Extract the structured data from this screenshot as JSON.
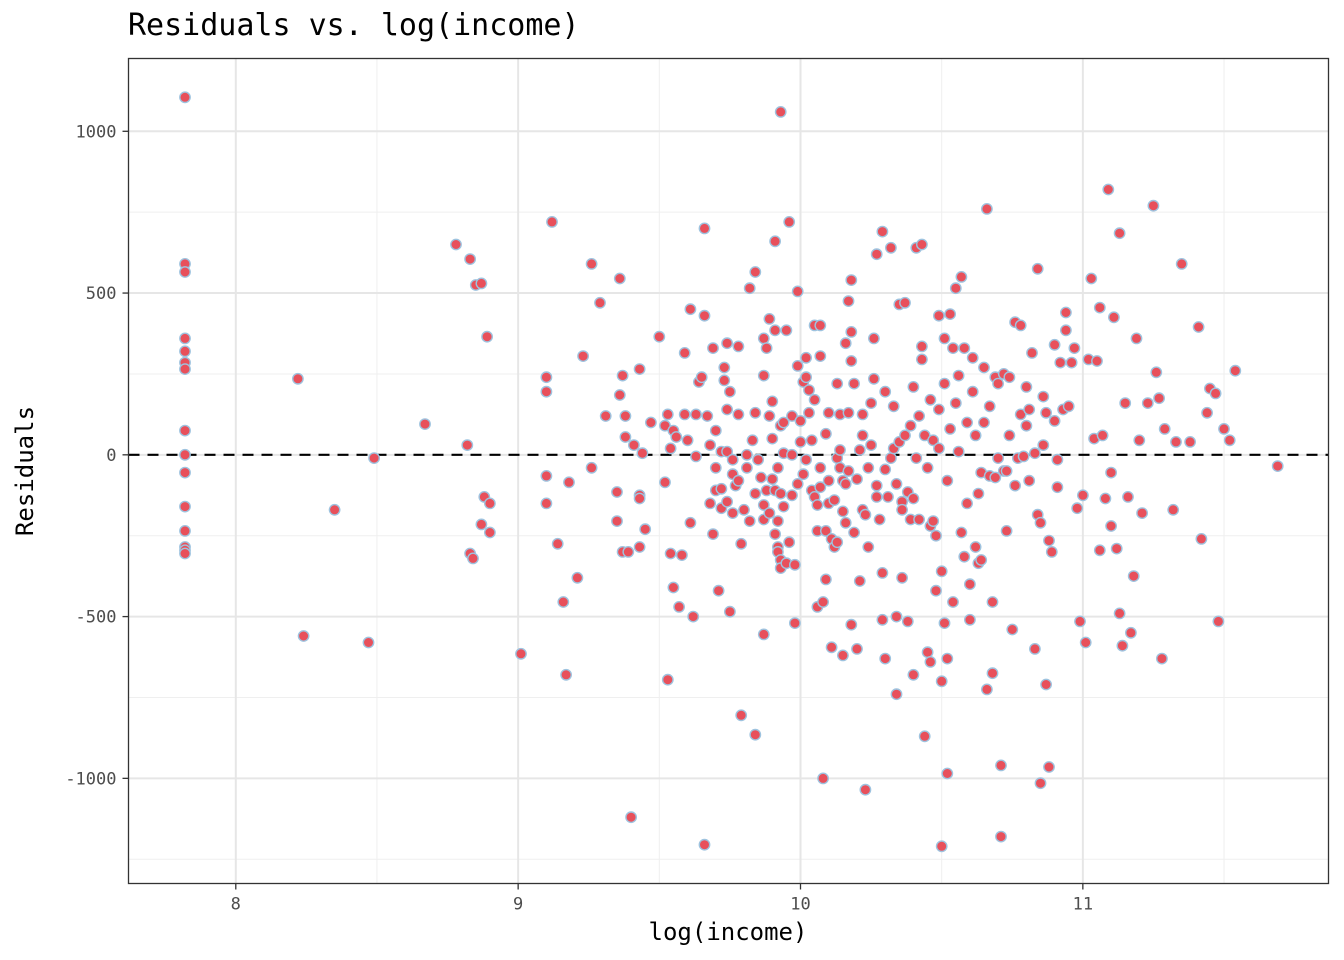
{
  "chart_data": {
    "type": "scatter",
    "title": "Residuals vs. log(income)",
    "xlabel": "log(income)",
    "ylabel": "Residuals",
    "xlim": [
      7.62,
      11.87
    ],
    "ylim": [
      -1325,
      1225
    ],
    "x_ticks": [
      8,
      9,
      10,
      11
    ],
    "y_ticks": [
      -1000,
      -500,
      0,
      500,
      1000
    ],
    "x_tick_labels": [
      "8",
      "9",
      "10",
      "11"
    ],
    "y_tick_labels": [
      "-1000",
      "-500",
      "0",
      "500",
      "1000"
    ],
    "reference_line": {
      "y": 0,
      "style": "dashed"
    },
    "grid": true,
    "colors": {
      "point_fill": "#e8505b",
      "point_stroke": "#9ec3df",
      "reference_line": "#000000"
    },
    "points": [
      [
        7.82,
        1105
      ],
      [
        7.82,
        590
      ],
      [
        7.82,
        565
      ],
      [
        7.82,
        360
      ],
      [
        7.82,
        320
      ],
      [
        7.82,
        285
      ],
      [
        7.82,
        265
      ],
      [
        7.82,
        75
      ],
      [
        7.82,
        0
      ],
      [
        7.82,
        -55
      ],
      [
        7.82,
        -160
      ],
      [
        7.82,
        -235
      ],
      [
        7.82,
        -285
      ],
      [
        7.82,
        -295
      ],
      [
        7.82,
        -305
      ],
      [
        8.22,
        235
      ],
      [
        8.24,
        -560
      ],
      [
        8.35,
        -170
      ],
      [
        8.47,
        -580
      ],
      [
        8.49,
        -10
      ],
      [
        8.67,
        95
      ],
      [
        8.78,
        650
      ],
      [
        8.82,
        30
      ],
      [
        8.83,
        605
      ],
      [
        8.83,
        -305
      ],
      [
        8.84,
        -320
      ],
      [
        8.85,
        525
      ],
      [
        8.87,
        530
      ],
      [
        8.87,
        -215
      ],
      [
        8.88,
        -130
      ],
      [
        8.89,
        365
      ],
      [
        8.9,
        -150
      ],
      [
        8.9,
        -240
      ],
      [
        9.01,
        -615
      ],
      [
        9.1,
        240
      ],
      [
        9.1,
        195
      ],
      [
        9.1,
        -65
      ],
      [
        9.1,
        -150
      ],
      [
        9.12,
        720
      ],
      [
        9.14,
        -275
      ],
      [
        9.16,
        -455
      ],
      [
        9.17,
        -680
      ],
      [
        9.18,
        -85
      ],
      [
        9.21,
        -380
      ],
      [
        9.23,
        305
      ],
      [
        9.26,
        590
      ],
      [
        9.26,
        -40
      ],
      [
        9.29,
        470
      ],
      [
        9.31,
        120
      ],
      [
        9.35,
        -115
      ],
      [
        9.35,
        -205
      ],
      [
        9.36,
        545
      ],
      [
        9.36,
        185
      ],
      [
        9.37,
        245
      ],
      [
        9.37,
        -300
      ],
      [
        9.38,
        55
      ],
      [
        9.38,
        120
      ],
      [
        9.39,
        -300
      ],
      [
        9.4,
        -1120
      ],
      [
        9.41,
        30
      ],
      [
        9.43,
        265
      ],
      [
        9.43,
        -125
      ],
      [
        9.43,
        -135
      ],
      [
        9.43,
        -285
      ],
      [
        9.44,
        5
      ],
      [
        9.45,
        -230
      ],
      [
        9.47,
        100
      ],
      [
        9.5,
        365
      ],
      [
        9.52,
        -85
      ],
      [
        9.52,
        90
      ],
      [
        9.53,
        125
      ],
      [
        9.53,
        -695
      ],
      [
        9.54,
        20
      ],
      [
        9.54,
        -305
      ],
      [
        9.55,
        75
      ],
      [
        9.55,
        -410
      ],
      [
        9.56,
        55
      ],
      [
        9.57,
        -470
      ],
      [
        9.58,
        -310
      ],
      [
        9.59,
        315
      ],
      [
        9.59,
        125
      ],
      [
        9.6,
        45
      ],
      [
        9.61,
        -210
      ],
      [
        9.61,
        450
      ],
      [
        9.62,
        -500
      ],
      [
        9.63,
        125
      ],
      [
        9.63,
        -5
      ],
      [
        9.64,
        225
      ],
      [
        9.65,
        240
      ],
      [
        9.66,
        430
      ],
      [
        9.66,
        700
      ],
      [
        9.66,
        -1205
      ],
      [
        9.67,
        120
      ],
      [
        9.68,
        30
      ],
      [
        9.68,
        -150
      ],
      [
        9.69,
        -245
      ],
      [
        9.69,
        330
      ],
      [
        9.7,
        -40
      ],
      [
        9.7,
        75
      ],
      [
        9.7,
        -110
      ],
      [
        9.71,
        -420
      ],
      [
        9.72,
        -165
      ],
      [
        9.72,
        -105
      ],
      [
        9.72,
        10
      ],
      [
        9.73,
        270
      ],
      [
        9.73,
        230
      ],
      [
        9.74,
        345
      ],
      [
        9.74,
        140
      ],
      [
        9.74,
        10
      ],
      [
        9.74,
        -145
      ],
      [
        9.75,
        -485
      ],
      [
        9.75,
        195
      ],
      [
        9.76,
        -15
      ],
      [
        9.76,
        -180
      ],
      [
        9.76,
        -60
      ],
      [
        9.77,
        -95
      ],
      [
        9.78,
        335
      ],
      [
        9.78,
        -80
      ],
      [
        9.78,
        125
      ],
      [
        9.79,
        -805
      ],
      [
        9.79,
        -275
      ],
      [
        9.8,
        -170
      ],
      [
        9.81,
        -40
      ],
      [
        9.81,
        0
      ],
      [
        9.82,
        -205
      ],
      [
        9.82,
        515
      ],
      [
        9.83,
        45
      ],
      [
        9.84,
        -865
      ],
      [
        9.84,
        565
      ],
      [
        9.84,
        -120
      ],
      [
        9.84,
        130
      ],
      [
        9.85,
        -15
      ],
      [
        9.86,
        -70
      ],
      [
        9.87,
        -155
      ],
      [
        9.87,
        245
      ],
      [
        9.87,
        360
      ],
      [
        9.87,
        -555
      ],
      [
        9.87,
        -200
      ],
      [
        9.88,
        -110
      ],
      [
        9.88,
        330
      ],
      [
        9.89,
        -180
      ],
      [
        9.89,
        120
      ],
      [
        9.89,
        420
      ],
      [
        9.9,
        50
      ],
      [
        9.9,
        165
      ],
      [
        9.9,
        -75
      ],
      [
        9.91,
        660
      ],
      [
        9.91,
        385
      ],
      [
        9.91,
        -245
      ],
      [
        9.91,
        -110
      ],
      [
        9.92,
        -40
      ],
      [
        9.92,
        -285
      ],
      [
        9.92,
        -205
      ],
      [
        9.92,
        -300
      ],
      [
        9.93,
        -120
      ],
      [
        9.93,
        90
      ],
      [
        9.93,
        1060
      ],
      [
        9.93,
        -325
      ],
      [
        9.93,
        -350
      ],
      [
        9.94,
        -160
      ],
      [
        9.94,
        5
      ],
      [
        9.94,
        100
      ],
      [
        9.95,
        -335
      ],
      [
        9.95,
        385
      ],
      [
        9.96,
        720
      ],
      [
        9.96,
        -270
      ],
      [
        9.97,
        -125
      ],
      [
        9.97,
        0
      ],
      [
        9.97,
        120
      ],
      [
        9.98,
        -520
      ],
      [
        9.98,
        -340
      ],
      [
        9.99,
        505
      ],
      [
        9.99,
        275
      ],
      [
        9.99,
        -90
      ],
      [
        10.0,
        105
      ],
      [
        10.0,
        40
      ],
      [
        10.01,
        -60
      ],
      [
        10.01,
        225
      ],
      [
        10.02,
        240
      ],
      [
        10.02,
        300
      ],
      [
        10.02,
        -15
      ],
      [
        10.03,
        130
      ],
      [
        10.03,
        200
      ],
      [
        10.04,
        -110
      ],
      [
        10.04,
        45
      ],
      [
        10.05,
        400
      ],
      [
        10.05,
        170
      ],
      [
        10.05,
        -130
      ],
      [
        10.06,
        -155
      ],
      [
        10.06,
        -235
      ],
      [
        10.06,
        -470
      ],
      [
        10.07,
        400
      ],
      [
        10.07,
        -100
      ],
      [
        10.07,
        305
      ],
      [
        10.07,
        -40
      ],
      [
        10.08,
        -1000
      ],
      [
        10.08,
        -455
      ],
      [
        10.09,
        -385
      ],
      [
        10.09,
        65
      ],
      [
        10.09,
        -235
      ],
      [
        10.1,
        -80
      ],
      [
        10.1,
        130
      ],
      [
        10.1,
        -150
      ],
      [
        10.11,
        -595
      ],
      [
        10.11,
        -260
      ],
      [
        10.12,
        -285
      ],
      [
        10.12,
        -140
      ],
      [
        10.13,
        -10
      ],
      [
        10.13,
        220
      ],
      [
        10.13,
        -270
      ],
      [
        10.14,
        125
      ],
      [
        10.14,
        15
      ],
      [
        10.14,
        -40
      ],
      [
        10.15,
        -620
      ],
      [
        10.15,
        -80
      ],
      [
        10.15,
        -175
      ],
      [
        10.16,
        345
      ],
      [
        10.16,
        -90
      ],
      [
        10.16,
        -210
      ],
      [
        10.17,
        475
      ],
      [
        10.17,
        -50
      ],
      [
        10.17,
        130
      ],
      [
        10.18,
        540
      ],
      [
        10.18,
        380
      ],
      [
        10.18,
        -525
      ],
      [
        10.18,
        290
      ],
      [
        10.19,
        220
      ],
      [
        10.19,
        -240
      ],
      [
        10.2,
        -75
      ],
      [
        10.2,
        -600
      ],
      [
        10.21,
        15
      ],
      [
        10.21,
        -390
      ],
      [
        10.22,
        125
      ],
      [
        10.22,
        60
      ],
      [
        10.22,
        -170
      ],
      [
        10.23,
        -1035
      ],
      [
        10.23,
        -185
      ],
      [
        10.24,
        -285
      ],
      [
        10.24,
        -40
      ],
      [
        10.25,
        30
      ],
      [
        10.25,
        160
      ],
      [
        10.26,
        360
      ],
      [
        10.26,
        235
      ],
      [
        10.27,
        -130
      ],
      [
        10.27,
        -95
      ],
      [
        10.27,
        620
      ],
      [
        10.28,
        -200
      ],
      [
        10.29,
        -365
      ],
      [
        10.29,
        -510
      ],
      [
        10.29,
        690
      ],
      [
        10.3,
        -45
      ],
      [
        10.3,
        195
      ],
      [
        10.3,
        -630
      ],
      [
        10.31,
        -130
      ],
      [
        10.32,
        640
      ],
      [
        10.32,
        -10
      ],
      [
        10.33,
        20
      ],
      [
        10.33,
        150
      ],
      [
        10.34,
        -90
      ],
      [
        10.34,
        -500
      ],
      [
        10.34,
        -740
      ],
      [
        10.35,
        40
      ],
      [
        10.35,
        465
      ],
      [
        10.36,
        -145
      ],
      [
        10.36,
        -170
      ],
      [
        10.36,
        -380
      ],
      [
        10.37,
        470
      ],
      [
        10.37,
        60
      ],
      [
        10.38,
        -115
      ],
      [
        10.38,
        -515
      ],
      [
        10.39,
        -200
      ],
      [
        10.39,
        90
      ],
      [
        10.4,
        -680
      ],
      [
        10.4,
        210
      ],
      [
        10.4,
        -135
      ],
      [
        10.41,
        640
      ],
      [
        10.41,
        -10
      ],
      [
        10.42,
        -200
      ],
      [
        10.42,
        120
      ],
      [
        10.43,
        335
      ],
      [
        10.43,
        295
      ],
      [
        10.43,
        650
      ],
      [
        10.44,
        60
      ],
      [
        10.44,
        -870
      ],
      [
        10.45,
        -40
      ],
      [
        10.45,
        -610
      ],
      [
        10.46,
        -640
      ],
      [
        10.46,
        170
      ],
      [
        10.46,
        -220
      ],
      [
        10.47,
        -205
      ],
      [
        10.47,
        45
      ],
      [
        10.48,
        -250
      ],
      [
        10.48,
        -420
      ],
      [
        10.49,
        140
      ],
      [
        10.49,
        430
      ],
      [
        10.49,
        20
      ],
      [
        10.5,
        -700
      ],
      [
        10.5,
        -1210
      ],
      [
        10.5,
        -360
      ],
      [
        10.51,
        -520
      ],
      [
        10.51,
        360
      ],
      [
        10.51,
        220
      ],
      [
        10.52,
        -985
      ],
      [
        10.52,
        -630
      ],
      [
        10.52,
        -80
      ],
      [
        10.53,
        435
      ],
      [
        10.53,
        80
      ],
      [
        10.54,
        330
      ],
      [
        10.54,
        -455
      ],
      [
        10.55,
        515
      ],
      [
        10.55,
        160
      ],
      [
        10.56,
        245
      ],
      [
        10.56,
        10
      ],
      [
        10.57,
        550
      ],
      [
        10.57,
        -240
      ],
      [
        10.58,
        330
      ],
      [
        10.58,
        -315
      ],
      [
        10.59,
        100
      ],
      [
        10.59,
        -150
      ],
      [
        10.6,
        -400
      ],
      [
        10.6,
        -510
      ],
      [
        10.61,
        195
      ],
      [
        10.61,
        300
      ],
      [
        10.62,
        -285
      ],
      [
        10.62,
        60
      ],
      [
        10.63,
        -120
      ],
      [
        10.63,
        -335
      ],
      [
        10.64,
        -55
      ],
      [
        10.64,
        -325
      ],
      [
        10.65,
        270
      ],
      [
        10.65,
        100
      ],
      [
        10.66,
        -725
      ],
      [
        10.66,
        760
      ],
      [
        10.67,
        150
      ],
      [
        10.67,
        -65
      ],
      [
        10.68,
        -455
      ],
      [
        10.68,
        -675
      ],
      [
        10.69,
        240
      ],
      [
        10.69,
        -70
      ],
      [
        10.7,
        -10
      ],
      [
        10.7,
        220
      ],
      [
        10.71,
        -960
      ],
      [
        10.71,
        -1180
      ],
      [
        10.72,
        -50
      ],
      [
        10.72,
        250
      ],
      [
        10.73,
        -235
      ],
      [
        10.73,
        -50
      ],
      [
        10.74,
        60
      ],
      [
        10.74,
        240
      ],
      [
        10.75,
        -540
      ],
      [
        10.76,
        410
      ],
      [
        10.76,
        -95
      ],
      [
        10.77,
        -10
      ],
      [
        10.78,
        400
      ],
      [
        10.78,
        125
      ],
      [
        10.79,
        -5
      ],
      [
        10.8,
        90
      ],
      [
        10.8,
        210
      ],
      [
        10.81,
        -80
      ],
      [
        10.81,
        140
      ],
      [
        10.82,
        315
      ],
      [
        10.83,
        -600
      ],
      [
        10.83,
        5
      ],
      [
        10.84,
        -185
      ],
      [
        10.84,
        575
      ],
      [
        10.85,
        -1015
      ],
      [
        10.85,
        -210
      ],
      [
        10.86,
        180
      ],
      [
        10.86,
        30
      ],
      [
        10.87,
        130
      ],
      [
        10.87,
        -710
      ],
      [
        10.88,
        -965
      ],
      [
        10.88,
        -265
      ],
      [
        10.89,
        -300
      ],
      [
        10.9,
        105
      ],
      [
        10.9,
        340
      ],
      [
        10.91,
        -100
      ],
      [
        10.91,
        -15
      ],
      [
        10.92,
        285
      ],
      [
        10.93,
        140
      ],
      [
        10.94,
        440
      ],
      [
        10.94,
        385
      ],
      [
        10.95,
        150
      ],
      [
        10.96,
        285
      ],
      [
        10.97,
        330
      ],
      [
        10.98,
        -165
      ],
      [
        10.99,
        -515
      ],
      [
        11.0,
        -125
      ],
      [
        11.01,
        -580
      ],
      [
        11.02,
        295
      ],
      [
        11.03,
        545
      ],
      [
        11.04,
        50
      ],
      [
        11.05,
        290
      ],
      [
        11.06,
        -295
      ],
      [
        11.06,
        455
      ],
      [
        11.07,
        60
      ],
      [
        11.08,
        -135
      ],
      [
        11.09,
        820
      ],
      [
        11.1,
        -220
      ],
      [
        11.1,
        -55
      ],
      [
        11.11,
        425
      ],
      [
        11.12,
        -290
      ],
      [
        11.13,
        685
      ],
      [
        11.13,
        -490
      ],
      [
        11.14,
        -590
      ],
      [
        11.15,
        160
      ],
      [
        11.16,
        -130
      ],
      [
        11.17,
        -550
      ],
      [
        11.18,
        -375
      ],
      [
        11.19,
        360
      ],
      [
        11.2,
        45
      ],
      [
        11.21,
        -180
      ],
      [
        11.23,
        160
      ],
      [
        11.25,
        770
      ],
      [
        11.26,
        255
      ],
      [
        11.27,
        175
      ],
      [
        11.28,
        -630
      ],
      [
        11.29,
        80
      ],
      [
        11.32,
        -170
      ],
      [
        11.33,
        40
      ],
      [
        11.35,
        590
      ],
      [
        11.38,
        40
      ],
      [
        11.41,
        395
      ],
      [
        11.42,
        -260
      ],
      [
        11.44,
        130
      ],
      [
        11.45,
        205
      ],
      [
        11.47,
        190
      ],
      [
        11.48,
        -515
      ],
      [
        11.5,
        80
      ],
      [
        11.52,
        45
      ],
      [
        11.54,
        260
      ],
      [
        11.69,
        -35
      ]
    ]
  }
}
